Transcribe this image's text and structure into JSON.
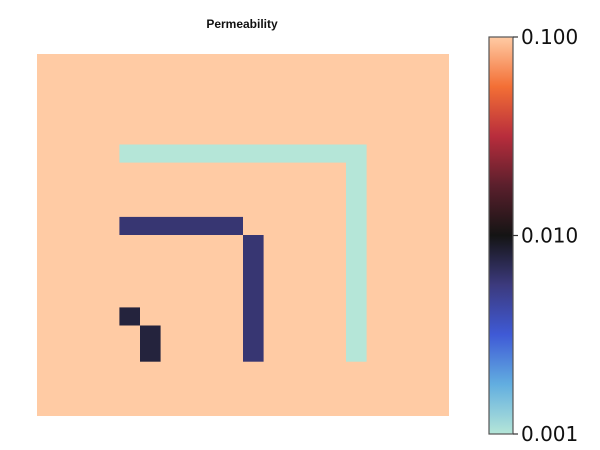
{
  "chart_data": {
    "type": "heatmap",
    "title": "Permeability",
    "xlabel": "",
    "ylabel": "",
    "grid": false,
    "x_range": [
      0,
      20
    ],
    "y_range": [
      0,
      20
    ],
    "background_value": 0.1,
    "regions": [
      {
        "value": 0.001,
        "shape": "L",
        "cells": [
          [
            4,
            14,
            15,
            15
          ],
          [
            15,
            3,
            16,
            15
          ]
        ]
      },
      {
        "value": 0.006,
        "shape": "L",
        "cells": [
          [
            4,
            10,
            10,
            11
          ],
          [
            10,
            3,
            11,
            10
          ]
        ]
      },
      {
        "value": 0.008,
        "shape": "L",
        "cells": [
          [
            4,
            5,
            5,
            6
          ],
          [
            5,
            3,
            6,
            5
          ]
        ]
      }
    ],
    "colorbar": {
      "scale": "log",
      "range": [
        0.001,
        0.1
      ],
      "position": "right",
      "ticks": [
        0.001,
        0.01,
        0.1
      ],
      "tick_labels": [
        "0.001",
        "0.010",
        "0.100"
      ],
      "colors": [
        "#b5e6d8",
        "#62aee0",
        "#3f5ad6",
        "#3c3a7e",
        "#141414",
        "#5a1f2c",
        "#b82d3c",
        "#f36f35",
        "#ffcba4"
      ]
    }
  }
}
